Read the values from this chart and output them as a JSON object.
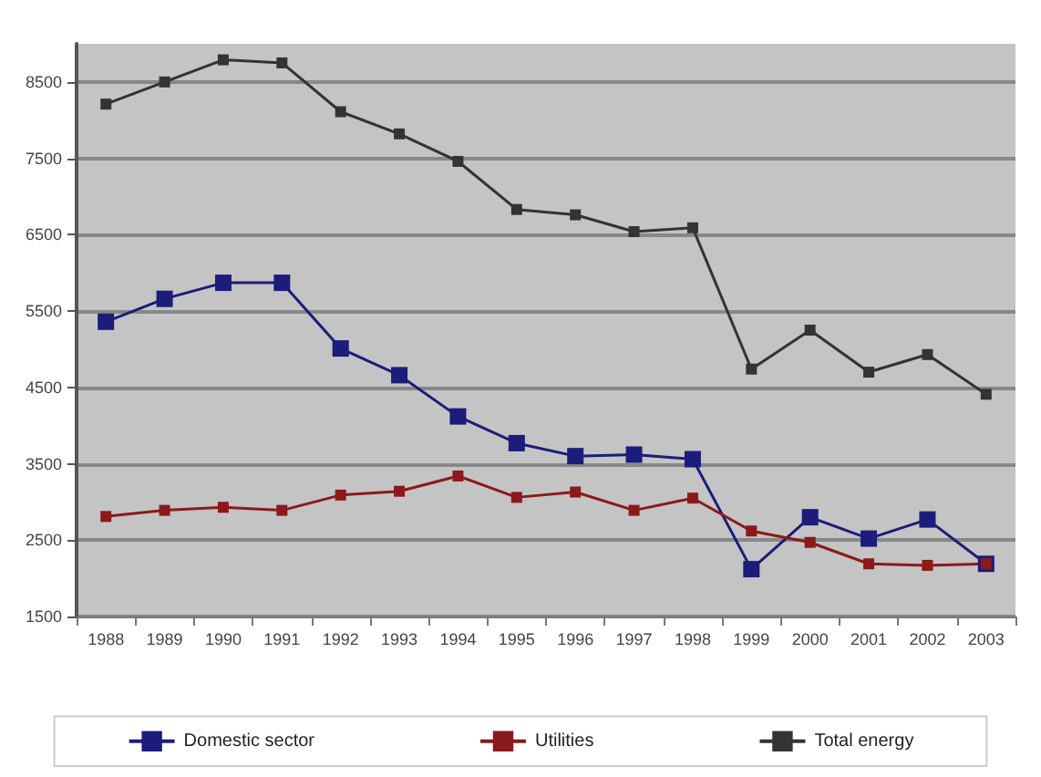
{
  "chart_data": {
    "type": "line",
    "categories": [
      "1988",
      "1989",
      "1990",
      "1991",
      "1992",
      "1993",
      "1994",
      "1995",
      "1996",
      "1997",
      "1998",
      "1999",
      "2000",
      "2001",
      "2002",
      "2003"
    ],
    "series": [
      {
        "name": "Domestic sector",
        "color": "#1c1c7a",
        "values": [
          5360,
          5660,
          5870,
          5870,
          5010,
          4660,
          4120,
          3770,
          3600,
          3620,
          3560,
          2120,
          2800,
          2520,
          2770,
          2190
        ]
      },
      {
        "name": "Utilities",
        "color": "#8b1a1a",
        "values": [
          2810,
          2890,
          2930,
          2890,
          3090,
          3140,
          3340,
          3060,
          3130,
          2890,
          3050,
          2620,
          2470,
          2190,
          2170,
          2190
        ]
      },
      {
        "name": "Total energy",
        "color": "#333333",
        "values": [
          8210,
          8500,
          8790,
          8750,
          8110,
          7820,
          7460,
          6830,
          6760,
          6540,
          6590,
          4740,
          5250,
          4700,
          4930,
          4410
        ]
      }
    ],
    "ylim": [
      1500,
      9000
    ],
    "yticks": [
      1500,
      2500,
      3500,
      4500,
      5500,
      6500,
      7500,
      8500
    ],
    "grid": "y",
    "legend": "bottom",
    "marker": "square",
    "line_style": "solid"
  }
}
